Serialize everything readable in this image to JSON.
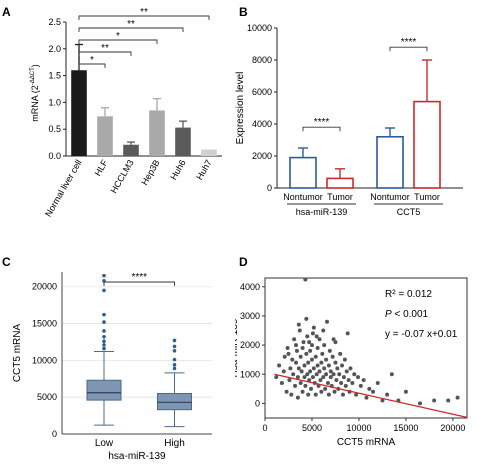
{
  "colors": {
    "black": "#1a1a1a",
    "grey1": "#9a9a9a",
    "grey2": "#5a5a5a",
    "blue": "#2a5c9e",
    "red": "#cc2a2a",
    "box": "#7f96b2",
    "dot": "#555555",
    "grid": "#e3e3e3",
    "outlier": "#2f5f8f"
  },
  "chart_data": [
    {
      "panel_label": "A",
      "type": "bar",
      "ylabel": "mRNA (2-ΔΔCT)",
      "ylabel_main": "mRNA (2",
      "ylabel_sup": "-ΔΔCT",
      "ylabel_close": ")",
      "ylim": [
        0,
        2.5
      ],
      "yticks": [
        0.0,
        0.5,
        1.0,
        1.5,
        2.0,
        2.5
      ],
      "ytick_labels": [
        "0.0",
        "0.5",
        "1.0",
        "1.5",
        "2.0",
        "2.5"
      ],
      "categories": [
        "Normal liver cell",
        "HLF",
        "HCCLM3",
        "Hep3B",
        "Huh6",
        "Huh7"
      ],
      "values": [
        1.6,
        0.74,
        0.21,
        0.85,
        0.53,
        0.12
      ],
      "errors": [
        0.48,
        0.16,
        0.05,
        0.22,
        0.12,
        0.0
      ],
      "bar_colors": [
        "#1a1a1a",
        "#a9a9a9",
        "#5a5a5a",
        "#a9a9a9",
        "#5a5a5a",
        "#d0d0d0"
      ],
      "significance": [
        {
          "from": "Normal liver cell",
          "to": "HLF",
          "label": "*"
        },
        {
          "from": "Normal liver cell",
          "to": "HCCLM3",
          "label": "**"
        },
        {
          "from": "Normal liver cell",
          "to": "Hep3B",
          "label": "*"
        },
        {
          "from": "Normal liver cell",
          "to": "Huh6",
          "label": "**"
        },
        {
          "from": "Normal liver cell",
          "to": "Huh7",
          "label": "**"
        }
      ]
    },
    {
      "panel_label": "B",
      "type": "bar",
      "ylabel": "Expression level",
      "ylim": [
        0,
        10000
      ],
      "yticks": [
        0,
        2000,
        4000,
        6000,
        8000,
        10000
      ],
      "ytick_labels": [
        "0",
        "2000",
        "4000",
        "6000",
        "8000",
        "10000"
      ],
      "categories": [
        "Nontumor",
        "Tumor",
        "Nontumor",
        "Tumor"
      ],
      "groups": [
        "hsa-miR-139",
        "CCT5"
      ],
      "values": [
        1900,
        600,
        3200,
        5400
      ],
      "errors": [
        600,
        600,
        550,
        2600
      ],
      "bar_outline_colors": [
        "#2a5c9e",
        "#cc2a2a",
        "#2a5c9e",
        "#cc2a2a"
      ],
      "significance": [
        {
          "group": "hsa-miR-139",
          "label": "****"
        },
        {
          "group": "CCT5",
          "label": "****"
        }
      ]
    },
    {
      "panel_label": "C",
      "type": "box",
      "ylabel": "CCT5 mRNA",
      "xlabel": "hsa-miR-139",
      "ylim": [
        0,
        22000
      ],
      "yticks": [
        0,
        5000,
        10000,
        15000,
        20000
      ],
      "ytick_labels": [
        "0",
        "5000",
        "10000",
        "15000",
        "20000"
      ],
      "categories": [
        "Low",
        "High"
      ],
      "boxes": [
        {
          "whisker_low": 1200,
          "q1": 4600,
          "median": 5600,
          "q3": 7300,
          "whisker_high": 11200,
          "outliers": [
            11600,
            12100,
            12600,
            13200,
            14000,
            15200,
            16200,
            19500,
            20800,
            21500
          ]
        },
        {
          "whisker_low": 1000,
          "q1": 3300,
          "median": 4300,
          "q3": 5500,
          "whisker_high": 8300,
          "outliers": [
            8900,
            9400,
            10100,
            11300,
            11900,
            12700
          ]
        }
      ],
      "significance": [
        {
          "from": "Low",
          "to": "High",
          "label": "****"
        }
      ]
    },
    {
      "panel_label": "D",
      "type": "scatter",
      "xlabel": "CCT5 mRNA",
      "ylabel": "Hsa-miR-139",
      "xlim": [
        0,
        21500
      ],
      "ylim": [
        -500,
        4300
      ],
      "xticks": [
        0,
        5000,
        10000,
        15000,
        20000
      ],
      "xtick_labels": [
        "0",
        "5000",
        "10000",
        "15000",
        "20000"
      ],
      "yticks": [
        0,
        1000,
        2000,
        3000,
        4000
      ],
      "ytick_labels": [
        "0",
        "1000",
        "2000",
        "3000",
        "4000"
      ],
      "annotations": {
        "r2": "R² = 0.012",
        "p_italic": "P",
        "p_rest": " < 0.001",
        "equation": "y = -0.07 x+0.01"
      },
      "fit_line": {
        "x": [
          1000,
          21500
        ],
        "y": [
          1000,
          -480
        ]
      },
      "points": [
        [
          1200,
          900
        ],
        [
          1500,
          1300
        ],
        [
          1800,
          700
        ],
        [
          2000,
          1100
        ],
        [
          2100,
          1600
        ],
        [
          2300,
          400
        ],
        [
          2400,
          1900
        ],
        [
          2600,
          800
        ],
        [
          2700,
          1200
        ],
        [
          2800,
          300
        ],
        [
          2900,
          1500
        ],
        [
          3000,
          1000
        ],
        [
          3100,
          2200
        ],
        [
          3200,
          600
        ],
        [
          3300,
          1400
        ],
        [
          3400,
          1800
        ],
        [
          3500,
          200
        ],
        [
          3500,
          900
        ],
        [
          3600,
          1200
        ],
        [
          3700,
          2500
        ],
        [
          3800,
          700
        ],
        [
          3800,
          1600
        ],
        [
          3900,
          1100
        ],
        [
          4000,
          400
        ],
        [
          4000,
          1900
        ],
        [
          4100,
          2100
        ],
        [
          4200,
          900
        ],
        [
          4200,
          1300
        ],
        [
          4300,
          4250
        ],
        [
          4300,
          600
        ],
        [
          4400,
          1700
        ],
        [
          4500,
          1000
        ],
        [
          4500,
          2300
        ],
        [
          4600,
          300
        ],
        [
          4600,
          1400
        ],
        [
          4700,
          800
        ],
        [
          4800,
          1800
        ],
        [
          4800,
          1100
        ],
        [
          4900,
          500
        ],
        [
          5000,
          1500
        ],
        [
          5000,
          2000
        ],
        [
          5100,
          900
        ],
        [
          5200,
          1200
        ],
        [
          5200,
          2600
        ],
        [
          5300,
          700
        ],
        [
          5400,
          1600
        ],
        [
          5400,
          300
        ],
        [
          5500,
          1000
        ],
        [
          5600,
          1900
        ],
        [
          5600,
          1300
        ],
        [
          5700,
          600
        ],
        [
          5800,
          2200
        ],
        [
          5800,
          1100
        ],
        [
          5900,
          800
        ],
        [
          6000,
          1400
        ],
        [
          6000,
          400
        ],
        [
          6100,
          1700
        ],
        [
          6200,
          900
        ],
        [
          6300,
          1200
        ],
        [
          6300,
          2000
        ],
        [
          6400,
          500
        ],
        [
          6500,
          1500
        ],
        [
          6500,
          1000
        ],
        [
          6600,
          2800
        ],
        [
          6700,
          700
        ],
        [
          6800,
          1300
        ],
        [
          6800,
          300
        ],
        [
          6900,
          1800
        ],
        [
          7000,
          900
        ],
        [
          7000,
          1100
        ],
        [
          7100,
          600
        ],
        [
          7200,
          1600
        ],
        [
          7300,
          1000
        ],
        [
          7400,
          400
        ],
        [
          7500,
          1400
        ],
        [
          7500,
          2100
        ],
        [
          7600,
          800
        ],
        [
          7700,
          1200
        ],
        [
          7800,
          500
        ],
        [
          7900,
          1000
        ],
        [
          8000,
          1700
        ],
        [
          8100,
          700
        ],
        [
          8200,
          1300
        ],
        [
          8300,
          300
        ],
        [
          8400,
          900
        ],
        [
          8500,
          1500
        ],
        [
          8600,
          600
        ],
        [
          8700,
          1100
        ],
        [
          8800,
          2400
        ],
        [
          8900,
          800
        ],
        [
          9000,
          400
        ],
        [
          9100,
          1200
        ],
        [
          9300,
          700
        ],
        [
          9500,
          1000
        ],
        [
          9700,
          300
        ],
        [
          9900,
          900
        ],
        [
          10200,
          600
        ],
        [
          10500,
          800
        ],
        [
          10800,
          200
        ],
        [
          11100,
          500
        ],
        [
          11500,
          400
        ],
        [
          12000,
          700
        ],
        [
          12500,
          100
        ],
        [
          13000,
          300
        ],
        [
          13500,
          1000
        ],
        [
          14200,
          100
        ],
        [
          15000,
          400
        ],
        [
          16500,
          0
        ],
        [
          18000,
          100
        ],
        [
          19500,
          100
        ],
        [
          20500,
          200
        ],
        [
          2500,
          1700
        ],
        [
          3600,
          2700
        ],
        [
          4400,
          2900
        ],
        [
          5100,
          2400
        ],
        [
          6200,
          2500
        ],
        [
          7300,
          2200
        ],
        [
          3300,
          2000
        ],
        [
          4700,
          2100
        ],
        [
          5500,
          2300
        ]
      ]
    }
  ]
}
